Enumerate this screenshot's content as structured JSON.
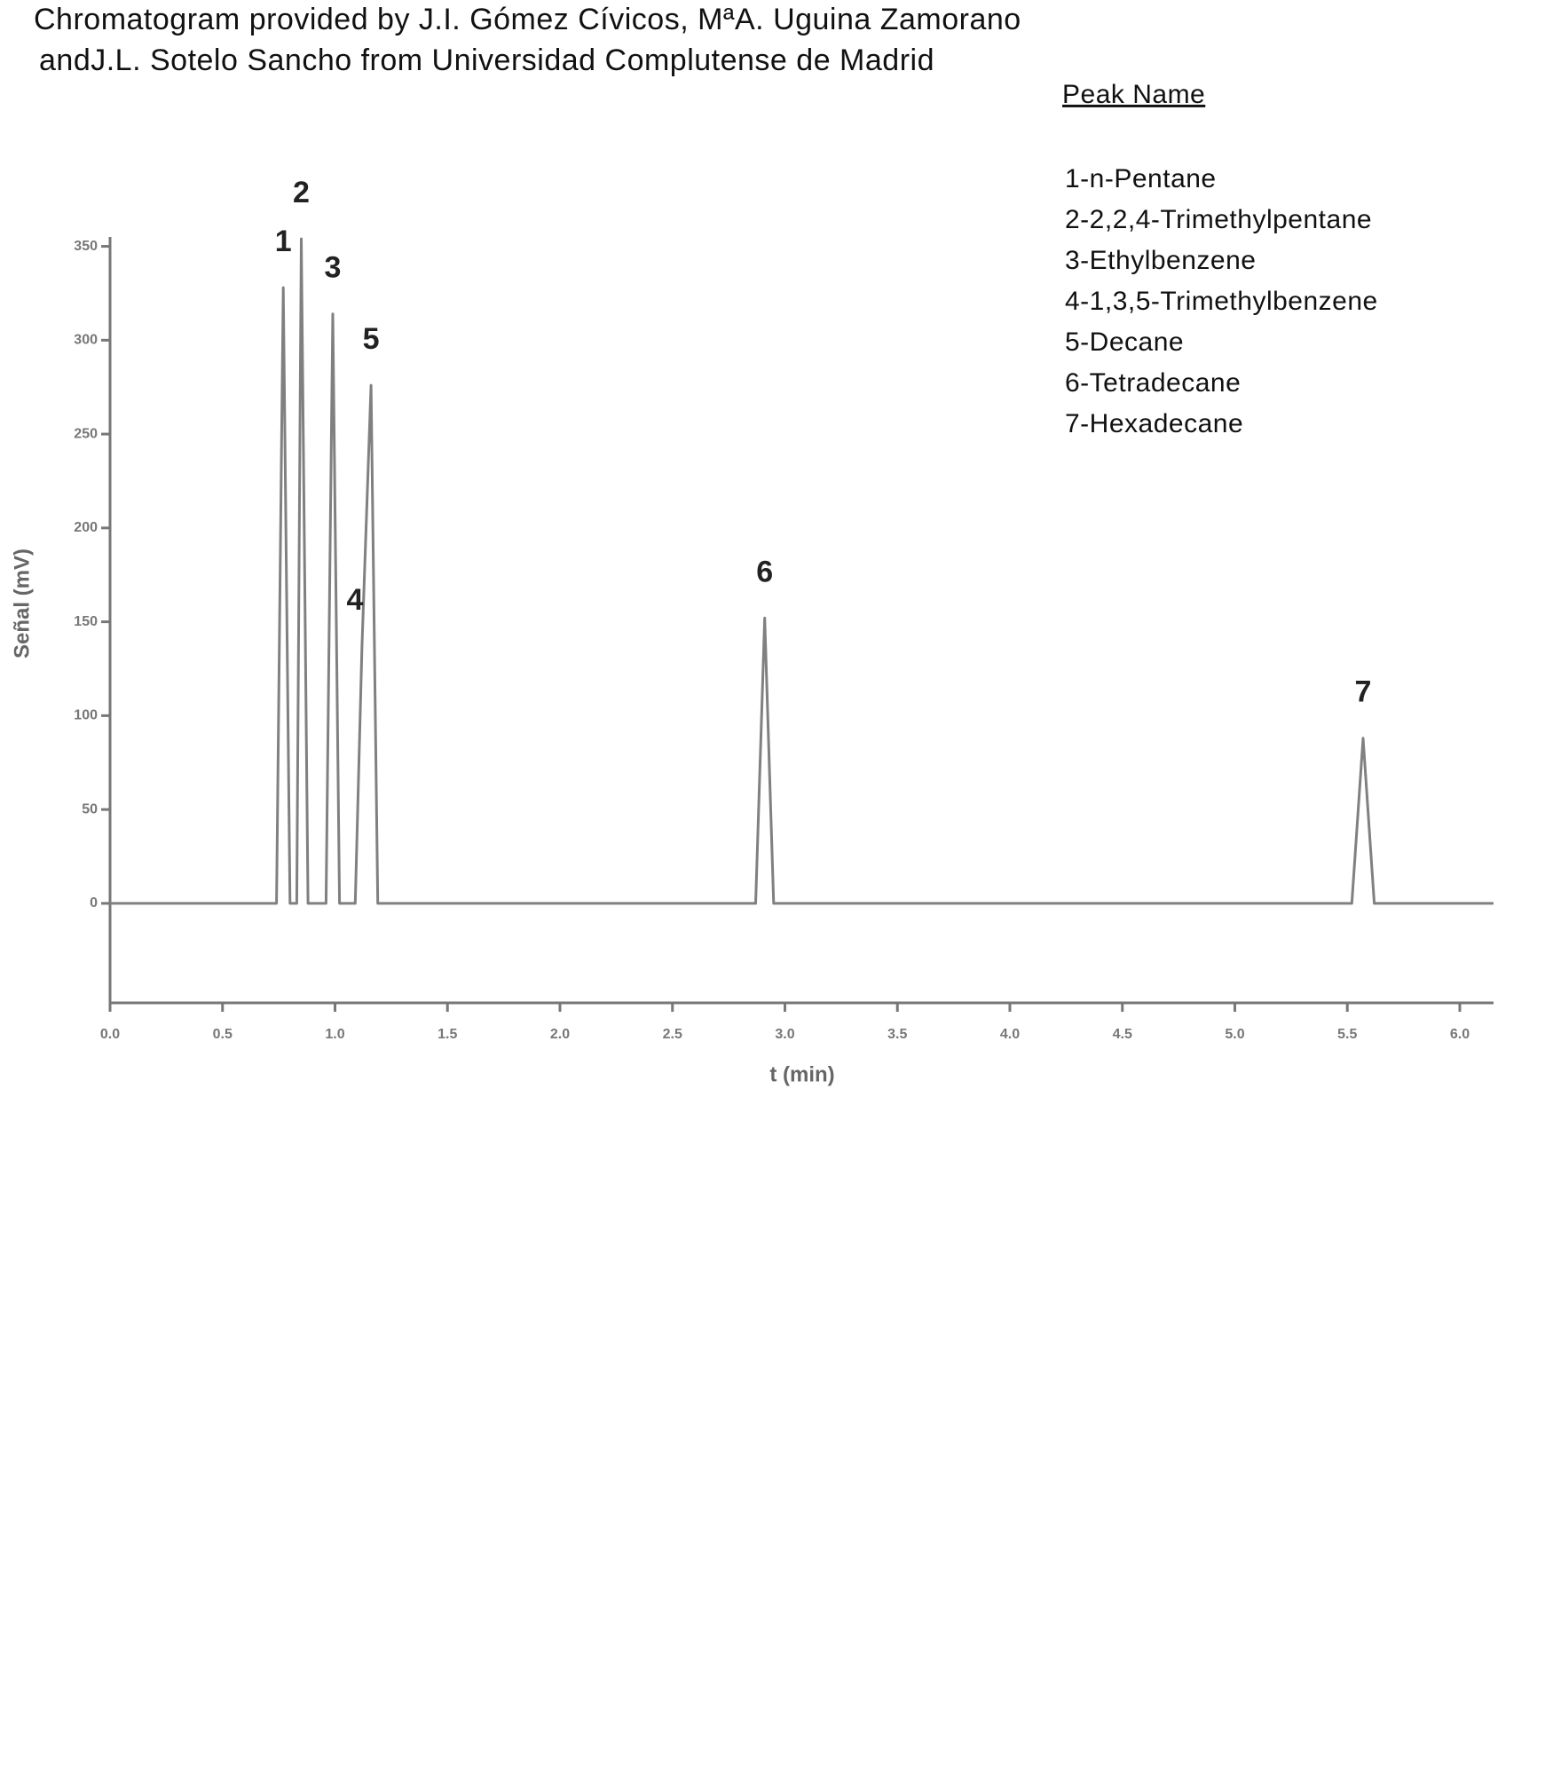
{
  "chart_data": {
    "type": "line",
    "title": [
      "Chromatogram provided by J.I. Gómez Cívicos, MªA. Uguina Zamorano",
      "andJ.L. Sotelo Sancho from Universidad Complutense de Madrid"
    ],
    "x_label": "t (min)",
    "y_label": "Señal (mV)",
    "series": [
      {
        "color": "#808080",
        "x": [
          0,
          0.74,
          0.77,
          0.8,
          0.83,
          0.85,
          0.88,
          0.96,
          0.99,
          1.02,
          1.09,
          1.12,
          1.16,
          1.19,
          2.87,
          2.91,
          2.95,
          5.52,
          5.57,
          5.62,
          6.15
        ],
        "values": [
          0,
          0,
          328,
          0,
          0,
          354,
          0,
          0,
          314,
          0,
          0,
          137,
          276,
          0,
          0,
          152,
          0,
          0,
          88,
          0,
          0
        ]
      }
    ],
    "annotations": [
      "1",
      "2",
      "3",
      "4",
      "5",
      "6",
      "7"
    ],
    "legend": {
      "title": "Peak Name",
      "entries": [
        "1-n-Pentane",
        "2-2,2,4-Trimethylpentane",
        "3-Ethylbenzene",
        "4-1,3,5-Trimethylbenzene",
        "5-Decane",
        "6-Tetradecane",
        "7-Hexadecane"
      ]
    },
    "xlim": [
      0,
      6.15
    ],
    "ylim": [
      -53,
      355
    ],
    "xticks": [
      {
        "value": 0,
        "label": "0.0"
      },
      {
        "value": 0.5,
        "label": "0.5"
      },
      {
        "value": 1,
        "label": "1.0"
      },
      {
        "value": 1.5,
        "label": "1.5"
      },
      {
        "value": 2,
        "label": "2.0"
      },
      {
        "value": 2.5,
        "label": "2.5"
      },
      {
        "value": 3,
        "label": "3.0"
      },
      {
        "value": 3.5,
        "label": "3.5"
      },
      {
        "value": 4,
        "label": "4.0"
      },
      {
        "value": 4.5,
        "label": "4.5"
      },
      {
        "value": 5,
        "label": "5.0"
      },
      {
        "value": 5.5,
        "label": "5.5"
      },
      {
        "value": 6,
        "label": "6.0"
      }
    ],
    "yticks": [
      0,
      50,
      100,
      150,
      200,
      250,
      300,
      350
    ],
    "grid": false
  }
}
